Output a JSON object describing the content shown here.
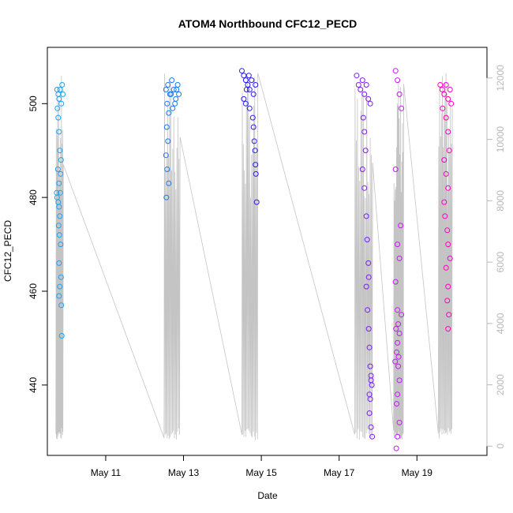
{
  "chart_data": {
    "type": "scatter",
    "title": "ATOM4 Northbound CFC12_PECD",
    "xlabel": "Date",
    "ylabel": "CFC12_PECD",
    "x_ticks": [
      "May 11",
      "May 13",
      "May 15",
      "May 17",
      "May 19"
    ],
    "x_tick_days": [
      11,
      13,
      15,
      17,
      19
    ],
    "xlim_days": [
      9.5,
      20.8
    ],
    "ylim": [
      425,
      512
    ],
    "y_ticks": [
      440,
      460,
      480,
      500
    ],
    "y2_ticks": [
      0,
      2000,
      4000,
      6000,
      8000,
      10000,
      12000
    ],
    "y2lim": [
      -300,
      13000
    ],
    "grid": false,
    "series": [
      {
        "color": "#1fa0f0",
        "day_range": [
          9.72,
          9.9
        ],
        "points": [
          [
            9.75,
            503
          ],
          [
            9.78,
            502
          ],
          [
            9.8,
            501
          ],
          [
            9.83,
            503
          ],
          [
            9.86,
            500
          ],
          [
            9.78,
            497
          ],
          [
            9.8,
            494
          ],
          [
            9.82,
            490
          ],
          [
            9.85,
            488
          ],
          [
            9.77,
            486
          ],
          [
            9.8,
            483
          ],
          [
            9.83,
            481
          ],
          [
            9.75,
            480
          ],
          [
            9.78,
            479
          ],
          [
            9.8,
            478
          ],
          [
            9.82,
            476
          ],
          [
            9.79,
            474
          ],
          [
            9.81,
            472
          ],
          [
            9.84,
            470
          ],
          [
            9.8,
            466
          ],
          [
            9.85,
            463
          ],
          [
            9.82,
            461
          ],
          [
            9.8,
            459
          ],
          [
            9.86,
            457
          ],
          [
            9.87,
            450.5
          ],
          [
            9.9,
            502
          ],
          [
            9.88,
            504
          ],
          [
            9.76,
            499
          ],
          [
            9.84,
            485
          ],
          [
            9.74,
            481
          ]
        ]
      },
      {
        "color": "#1a78f0",
        "day_range": [
          12.5,
          12.9
        ],
        "points": [
          [
            12.55,
            503
          ],
          [
            12.6,
            504
          ],
          [
            12.65,
            502
          ],
          [
            12.7,
            505
          ],
          [
            12.75,
            503
          ],
          [
            12.8,
            501
          ],
          [
            12.85,
            504
          ],
          [
            12.88,
            502
          ],
          [
            12.58,
            500
          ],
          [
            12.62,
            498
          ],
          [
            12.57,
            495
          ],
          [
            12.6,
            492
          ],
          [
            12.55,
            489
          ],
          [
            12.58,
            486
          ],
          [
            12.62,
            483
          ],
          [
            12.56,
            480
          ],
          [
            12.72,
            499
          ],
          [
            12.78,
            500
          ],
          [
            12.82,
            503
          ],
          [
            12.68,
            502
          ]
        ]
      },
      {
        "color": "#2a1cf0",
        "day_range": [
          14.5,
          14.9
        ],
        "points": [
          [
            14.5,
            507
          ],
          [
            14.55,
            506
          ],
          [
            14.6,
            505
          ],
          [
            14.65,
            504
          ],
          [
            14.7,
            503
          ],
          [
            14.75,
            505
          ],
          [
            14.8,
            502
          ],
          [
            14.85,
            504
          ],
          [
            14.55,
            501
          ],
          [
            14.6,
            500
          ],
          [
            14.7,
            499
          ],
          [
            14.78,
            497
          ],
          [
            14.8,
            495
          ],
          [
            14.82,
            492
          ],
          [
            14.84,
            490
          ],
          [
            14.85,
            487
          ],
          [
            14.86,
            485
          ],
          [
            14.88,
            479
          ],
          [
            14.62,
            503
          ],
          [
            14.68,
            506
          ]
        ]
      },
      {
        "color": "#7a1ef0",
        "day_range": [
          17.4,
          17.85
        ],
        "points": [
          [
            17.45,
            506
          ],
          [
            17.5,
            504
          ],
          [
            17.55,
            503
          ],
          [
            17.6,
            505
          ],
          [
            17.65,
            502
          ],
          [
            17.7,
            504
          ],
          [
            17.75,
            501
          ],
          [
            17.8,
            500
          ],
          [
            17.62,
            497
          ],
          [
            17.65,
            494
          ],
          [
            17.68,
            490
          ],
          [
            17.6,
            486
          ],
          [
            17.65,
            482
          ],
          [
            17.7,
            476
          ],
          [
            17.72,
            471
          ],
          [
            17.75,
            466
          ],
          [
            17.7,
            461
          ],
          [
            17.73,
            456
          ],
          [
            17.76,
            452
          ],
          [
            17.78,
            448
          ],
          [
            17.8,
            444
          ],
          [
            17.82,
            442
          ],
          [
            17.84,
            440
          ],
          [
            17.8,
            437
          ],
          [
            17.78,
            434
          ],
          [
            17.82,
            431
          ],
          [
            17.85,
            429
          ],
          [
            17.78,
            438
          ],
          [
            17.82,
            441
          ],
          [
            17.76,
            463
          ]
        ]
      },
      {
        "color": "#c21ce8",
        "day_range": [
          18.4,
          18.65
        ],
        "points": [
          [
            18.45,
            507
          ],
          [
            18.5,
            505
          ],
          [
            18.55,
            502
          ],
          [
            18.6,
            499
          ],
          [
            18.45,
            486
          ],
          [
            18.5,
            470
          ],
          [
            18.55,
            467
          ],
          [
            18.45,
            462
          ],
          [
            18.5,
            456
          ],
          [
            18.52,
            453
          ],
          [
            18.55,
            451
          ],
          [
            18.5,
            449
          ],
          [
            18.48,
            447
          ],
          [
            18.52,
            444
          ],
          [
            18.55,
            441
          ],
          [
            18.5,
            438
          ],
          [
            18.48,
            436
          ],
          [
            18.55,
            432
          ],
          [
            18.5,
            429
          ],
          [
            18.47,
            426.5
          ],
          [
            18.58,
            474
          ],
          [
            18.6,
            455
          ],
          [
            18.44,
            445
          ],
          [
            18.46,
            452
          ],
          [
            18.53,
            446
          ]
        ]
      },
      {
        "color": "#ff00c0",
        "day_range": [
          19.55,
          19.9
        ],
        "points": [
          [
            19.6,
            504
          ],
          [
            19.65,
            503
          ],
          [
            19.7,
            502
          ],
          [
            19.75,
            504
          ],
          [
            19.8,
            501
          ],
          [
            19.85,
            503
          ],
          [
            19.88,
            500
          ],
          [
            19.75,
            497
          ],
          [
            19.8,
            494
          ],
          [
            19.83,
            490
          ],
          [
            19.7,
            488
          ],
          [
            19.75,
            485
          ],
          [
            19.8,
            482
          ],
          [
            19.7,
            479
          ],
          [
            19.72,
            476
          ],
          [
            19.78,
            473
          ],
          [
            19.8,
            470
          ],
          [
            19.75,
            465
          ],
          [
            19.8,
            461
          ],
          [
            19.78,
            458
          ],
          [
            19.82,
            455
          ],
          [
            19.8,
            452
          ],
          [
            19.85,
            467
          ],
          [
            19.66,
            499
          ]
        ]
      }
    ]
  }
}
